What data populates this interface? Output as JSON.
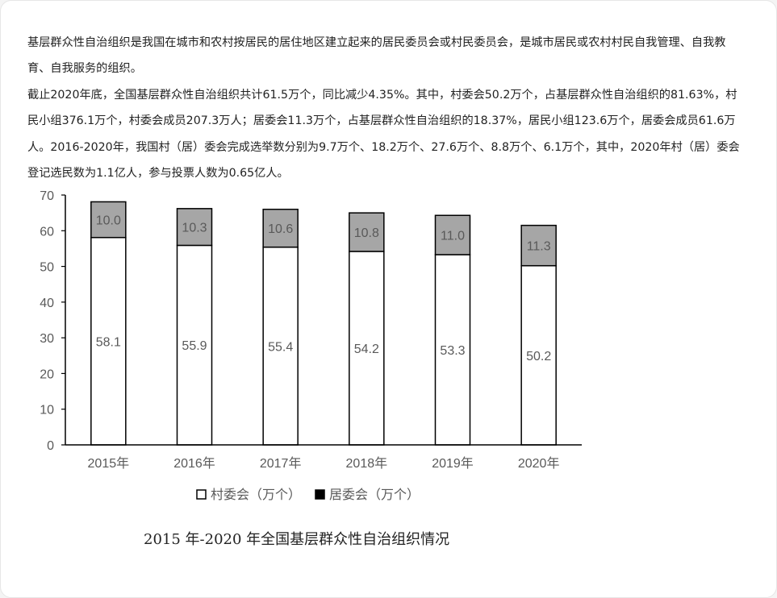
{
  "text": {
    "para1": "基层群众性自治组织是我国在城市和农村按居民的居住地区建立起来的居民委员会或村民委员会，是城市居民或农村村民自我管理、自我教育、自我服务的组织。",
    "para2": "截止2020年底，全国基层群众性自治组织共计61.5万个，同比减少4.35%。其中，村委会50.2万个，占基层群众性自治组织的81.63%，村民小组376.1万个，村委会成员207.3万人；居委会11.3万个，占基层群众性自治组织的18.37%，居民小组123.6万个，居委会成员61.6万人。2016-2020年，我国村（居）委会完成选举数分别为9.7万个、18.2万个、27.6万个、8.8万个、6.1万个，其中，2020年村（居）委会登记选民数为1.1亿人，参与投票人数为0.65亿人。"
  },
  "chart_data": {
    "type": "bar",
    "stacked": true,
    "title": "2015 年-2020 年全国基层群众性自治组织情况",
    "categories": [
      "2015年",
      "2016年",
      "2017年",
      "2018年",
      "2019年",
      "2020年"
    ],
    "series": [
      {
        "name": "村委会（万个）",
        "values": [
          58.1,
          55.9,
          55.4,
          54.2,
          53.3,
          50.2
        ],
        "color": "#ffffff"
      },
      {
        "name": "居委会（万个）",
        "values": [
          10.0,
          10.3,
          10.6,
          10.8,
          11.0,
          11.3
        ],
        "color": "#a6a6a6"
      }
    ],
    "ylim": [
      0,
      70
    ],
    "yticks": [
      0,
      10,
      20,
      30,
      40,
      50,
      60,
      70
    ],
    "legend_position": "bottom",
    "grid": false
  }
}
